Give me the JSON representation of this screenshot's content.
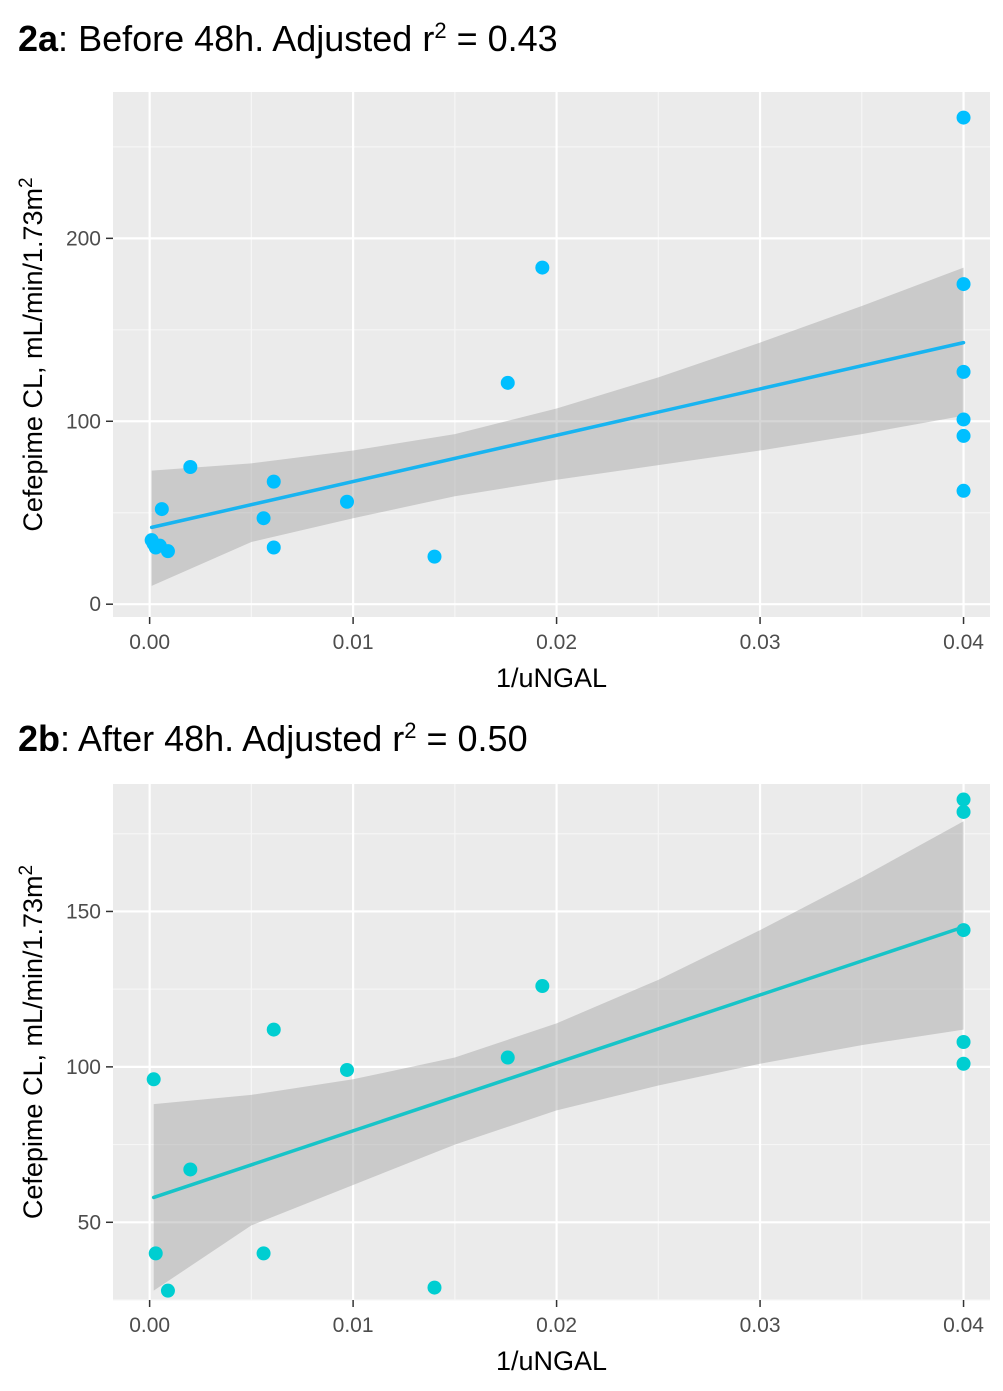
{
  "chart_data": [
    {
      "type": "scatter",
      "panel": "2a",
      "title": "Before 48h. Adjusted r",
      "title_suffix": " = 0.43",
      "xlabel": "1/uNGAL",
      "ylabel": "Cefepime CL, mL/min/1.73m",
      "xlim": [
        -0.0018,
        0.0413
      ],
      "ylim": [
        -7,
        280
      ],
      "xticks": [
        0.0,
        0.01,
        0.02,
        0.03,
        0.04
      ],
      "xtick_labels": [
        "0.00",
        "0.01",
        "0.02",
        "0.03",
        "0.04"
      ],
      "yticks": [
        0,
        100,
        200
      ],
      "ytick_labels": [
        "0",
        "100",
        "200"
      ],
      "grid": true,
      "point_color": "#00bfff",
      "line_color": "#18b4f0",
      "points": [
        {
          "x": 0.0001,
          "y": 35
        },
        {
          "x": 0.0002,
          "y": 33
        },
        {
          "x": 0.0003,
          "y": 31
        },
        {
          "x": 0.0005,
          "y": 32
        },
        {
          "x": 0.0009,
          "y": 29
        },
        {
          "x": 0.0006,
          "y": 52
        },
        {
          "x": 0.002,
          "y": 75
        },
        {
          "x": 0.0056,
          "y": 47
        },
        {
          "x": 0.0061,
          "y": 67
        },
        {
          "x": 0.0061,
          "y": 31
        },
        {
          "x": 0.0097,
          "y": 56
        },
        {
          "x": 0.014,
          "y": 26
        },
        {
          "x": 0.0176,
          "y": 121
        },
        {
          "x": 0.0193,
          "y": 184
        },
        {
          "x": 0.04,
          "y": 266
        },
        {
          "x": 0.04,
          "y": 175
        },
        {
          "x": 0.04,
          "y": 127
        },
        {
          "x": 0.04,
          "y": 101
        },
        {
          "x": 0.04,
          "y": 92
        },
        {
          "x": 0.04,
          "y": 62
        }
      ],
      "fit": {
        "x": [
          0.0001,
          0.04
        ],
        "y": [
          42,
          143
        ]
      },
      "band": {
        "x": [
          0.0001,
          0.005,
          0.01,
          0.015,
          0.02,
          0.025,
          0.03,
          0.035,
          0.04
        ],
        "upper": [
          73,
          77,
          84,
          93,
          107,
          124,
          143,
          163,
          184
        ],
        "lower": [
          10,
          34,
          47,
          59,
          68,
          76,
          84,
          93,
          103
        ]
      }
    },
    {
      "type": "scatter",
      "panel": "2b",
      "title": "After 48h. Adjusted r",
      "title_suffix": " = 0.50",
      "xlabel": "1/uNGAL",
      "ylabel": "Cefepime CL, mL/min/1.73m",
      "xlim": [
        -0.0018,
        0.0413
      ],
      "ylim": [
        25,
        191
      ],
      "xticks": [
        0.0,
        0.01,
        0.02,
        0.03,
        0.04
      ],
      "xtick_labels": [
        "0.00",
        "0.01",
        "0.02",
        "0.03",
        "0.04"
      ],
      "yticks": [
        50,
        100,
        150
      ],
      "ytick_labels": [
        "50",
        "100",
        "150"
      ],
      "grid": true,
      "point_color": "#00ced1",
      "line_color": "#17c4c8",
      "points": [
        {
          "x": 0.0002,
          "y": 96
        },
        {
          "x": 0.0003,
          "y": 40
        },
        {
          "x": 0.0009,
          "y": 28
        },
        {
          "x": 0.002,
          "y": 67
        },
        {
          "x": 0.0056,
          "y": 40
        },
        {
          "x": 0.0061,
          "y": 112
        },
        {
          "x": 0.0097,
          "y": 99
        },
        {
          "x": 0.014,
          "y": 29
        },
        {
          "x": 0.0176,
          "y": 103
        },
        {
          "x": 0.0193,
          "y": 126
        },
        {
          "x": 0.04,
          "y": 186
        },
        {
          "x": 0.04,
          "y": 182
        },
        {
          "x": 0.04,
          "y": 144
        },
        {
          "x": 0.04,
          "y": 108
        },
        {
          "x": 0.04,
          "y": 101
        }
      ],
      "fit": {
        "x": [
          0.0002,
          0.04
        ],
        "y": [
          58,
          145
        ]
      },
      "band": {
        "x": [
          0.0002,
          0.005,
          0.01,
          0.015,
          0.02,
          0.025,
          0.03,
          0.035,
          0.04
        ],
        "upper": [
          88,
          91,
          96,
          103,
          114,
          128,
          144,
          161,
          179
        ],
        "lower": [
          28,
          49,
          62,
          75,
          86,
          94,
          101,
          107,
          112
        ]
      }
    }
  ]
}
